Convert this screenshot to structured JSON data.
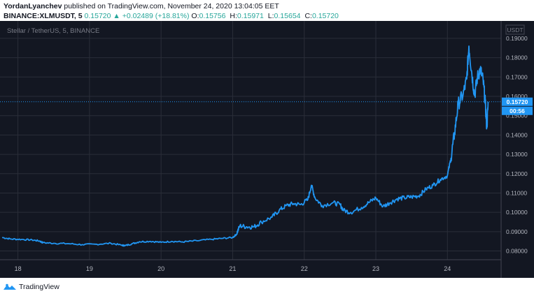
{
  "header": {
    "author": "YordanLyanchev",
    "published_text": "published on TradingView.com, November 24, 2020 13:04:05 EET",
    "symbol": "BINANCE:XLMUSDT, 5",
    "last_price": "0.15720",
    "change_arrow": "▲",
    "change": "+0.02489 (+18.81%)",
    "open_label": "O:",
    "open": "0.15756",
    "high_label": "H:",
    "high": "0.15971",
    "low_label": "L:",
    "low": "0.15654",
    "close_label": "C:",
    "close": "0.15720"
  },
  "footer": {
    "brand": "TradingView",
    "logo_icon": "tradingview-logo-icon"
  },
  "colors": {
    "background": "#131722",
    "grid": "#2a2e39",
    "line": "#2196f3",
    "text": "#b2b5be",
    "up": "#26a69a"
  },
  "chart_data": {
    "type": "line",
    "legend_text": "Stellar / TetherUS, 5, BINANCE",
    "currency_label": "USDT",
    "y_ticks": [
      "0.19000",
      "0.18000",
      "0.17000",
      "0.16000",
      "0.15000",
      "0.14000",
      "0.13000",
      "0.12000",
      "0.11000",
      "0.10000",
      "0.09000",
      "0.08000"
    ],
    "x_ticks": [
      {
        "label": "18",
        "x": 18.0
      },
      {
        "label": "19",
        "x": 19.0
      },
      {
        "label": "20",
        "x": 20.0
      },
      {
        "label": "21",
        "x": 21.0
      },
      {
        "label": "22",
        "x": 22.0
      },
      {
        "label": "23",
        "x": 23.0
      },
      {
        "label": "24",
        "x": 24.0
      }
    ],
    "ylim": [
      0.0755,
      0.199
    ],
    "xlim": [
      17.75,
      24.75
    ],
    "grid": true,
    "last_price_label": "0.15720",
    "countdown_label": "00:56",
    "series": [
      {
        "points": [
          [
            17.78,
            0.087
          ],
          [
            17.9,
            0.0862
          ],
          [
            18.05,
            0.086
          ],
          [
            18.2,
            0.0857
          ],
          [
            18.3,
            0.0852
          ],
          [
            18.35,
            0.0843
          ],
          [
            18.5,
            0.084
          ],
          [
            18.7,
            0.0838
          ],
          [
            18.9,
            0.0833
          ],
          [
            19.1,
            0.0835
          ],
          [
            19.3,
            0.084
          ],
          [
            19.45,
            0.083
          ],
          [
            19.5,
            0.0828
          ],
          [
            19.6,
            0.0838
          ],
          [
            19.7,
            0.0848
          ],
          [
            19.85,
            0.085
          ],
          [
            20.0,
            0.0845
          ],
          [
            20.15,
            0.085
          ],
          [
            20.3,
            0.0847
          ],
          [
            20.5,
            0.0853
          ],
          [
            20.7,
            0.086
          ],
          [
            20.85,
            0.0865
          ],
          [
            21.0,
            0.087
          ],
          [
            21.05,
            0.0885
          ],
          [
            21.1,
            0.093
          ],
          [
            21.2,
            0.0925
          ],
          [
            21.3,
            0.0925
          ],
          [
            21.4,
            0.095
          ],
          [
            21.55,
            0.0975
          ],
          [
            21.65,
            0.101
          ],
          [
            21.75,
            0.1035
          ],
          [
            21.85,
            0.1045
          ],
          [
            21.95,
            0.104
          ],
          [
            22.05,
            0.1065
          ],
          [
            22.1,
            0.114
          ],
          [
            22.15,
            0.1075
          ],
          [
            22.25,
            0.1035
          ],
          [
            22.4,
            0.105
          ],
          [
            22.5,
            0.104
          ],
          [
            22.55,
            0.101
          ],
          [
            22.65,
            0.1
          ],
          [
            22.8,
            0.1025
          ],
          [
            22.9,
            0.105
          ],
          [
            23.0,
            0.1075
          ],
          [
            23.1,
            0.103
          ],
          [
            23.2,
            0.105
          ],
          [
            23.3,
            0.107
          ],
          [
            23.4,
            0.1075
          ],
          [
            23.5,
            0.108
          ],
          [
            23.6,
            0.1085
          ],
          [
            23.7,
            0.112
          ],
          [
            23.8,
            0.114
          ],
          [
            23.9,
            0.117
          ],
          [
            24.0,
            0.119
          ],
          [
            24.05,
            0.128
          ],
          [
            24.1,
            0.141
          ],
          [
            24.15,
            0.156
          ],
          [
            24.22,
            0.161
          ],
          [
            24.27,
            0.169
          ],
          [
            24.3,
            0.186
          ],
          [
            24.34,
            0.172
          ],
          [
            24.38,
            0.1605
          ],
          [
            24.42,
            0.17
          ],
          [
            24.46,
            0.174
          ],
          [
            24.5,
            0.168
          ],
          [
            24.53,
            0.156
          ],
          [
            24.55,
            0.144
          ],
          [
            24.57,
            0.1572
          ]
        ]
      }
    ]
  }
}
